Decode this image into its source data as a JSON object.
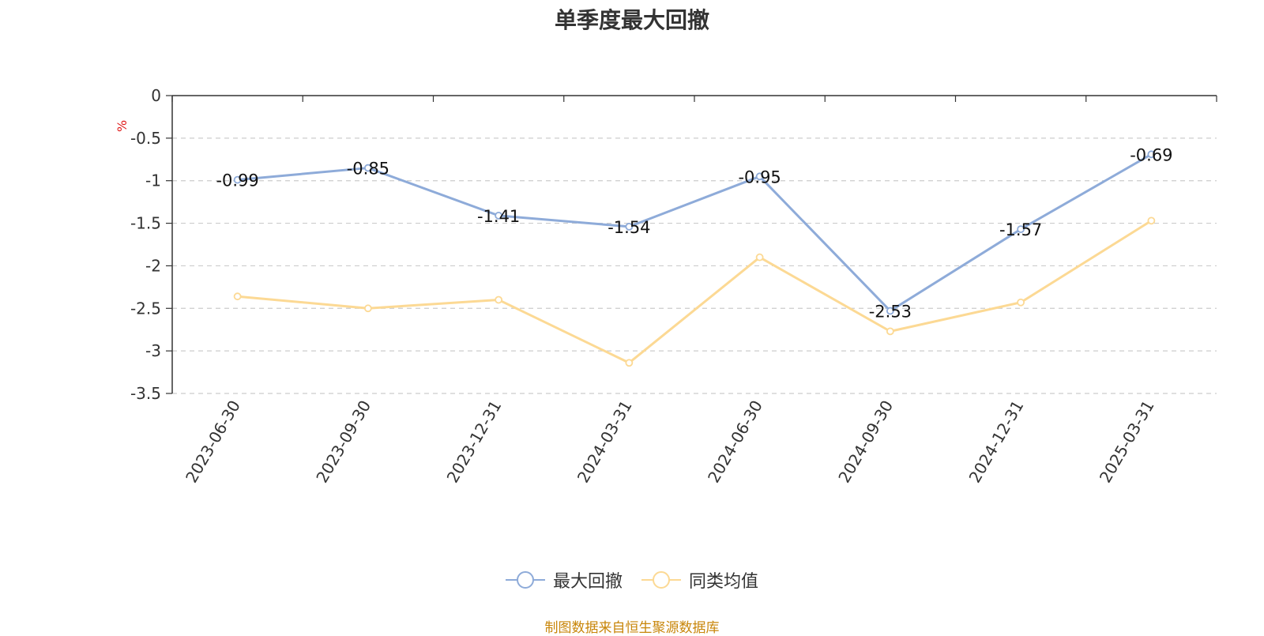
{
  "chart_data": {
    "type": "line",
    "title": "单季度最大回撤",
    "ylabel": "%",
    "xlabel": "",
    "categories": [
      "2023-06-30",
      "2023-09-30",
      "2023-12-31",
      "2024-03-31",
      "2024-06-30",
      "2024-09-30",
      "2024-12-31",
      "2025-03-31"
    ],
    "ylim": [
      -3.5,
      0
    ],
    "yticks": [
      "0",
      "-0.5",
      "-1",
      "-1.5",
      "-2",
      "-2.5",
      "-3",
      "-3.5"
    ],
    "grid": true,
    "legend_position": "bottom",
    "series": [
      {
        "name": "最大回撤",
        "color": "#8eabd9",
        "values": [
          -0.99,
          -0.85,
          -1.41,
          -1.54,
          -0.95,
          -2.53,
          -1.57,
          -0.69
        ],
        "labels": [
          "-0.99",
          "-0.85",
          "-1.41",
          "-1.54",
          "-0.95",
          "-2.53",
          "-1.57",
          "-0.69"
        ]
      },
      {
        "name": "同类均值",
        "color": "#fcd994",
        "values": [
          -2.36,
          -2.5,
          -2.4,
          -3.14,
          -1.9,
          -2.77,
          -2.43,
          -1.47
        ]
      }
    ]
  },
  "source_note": "制图数据来自恒生聚源数据库"
}
